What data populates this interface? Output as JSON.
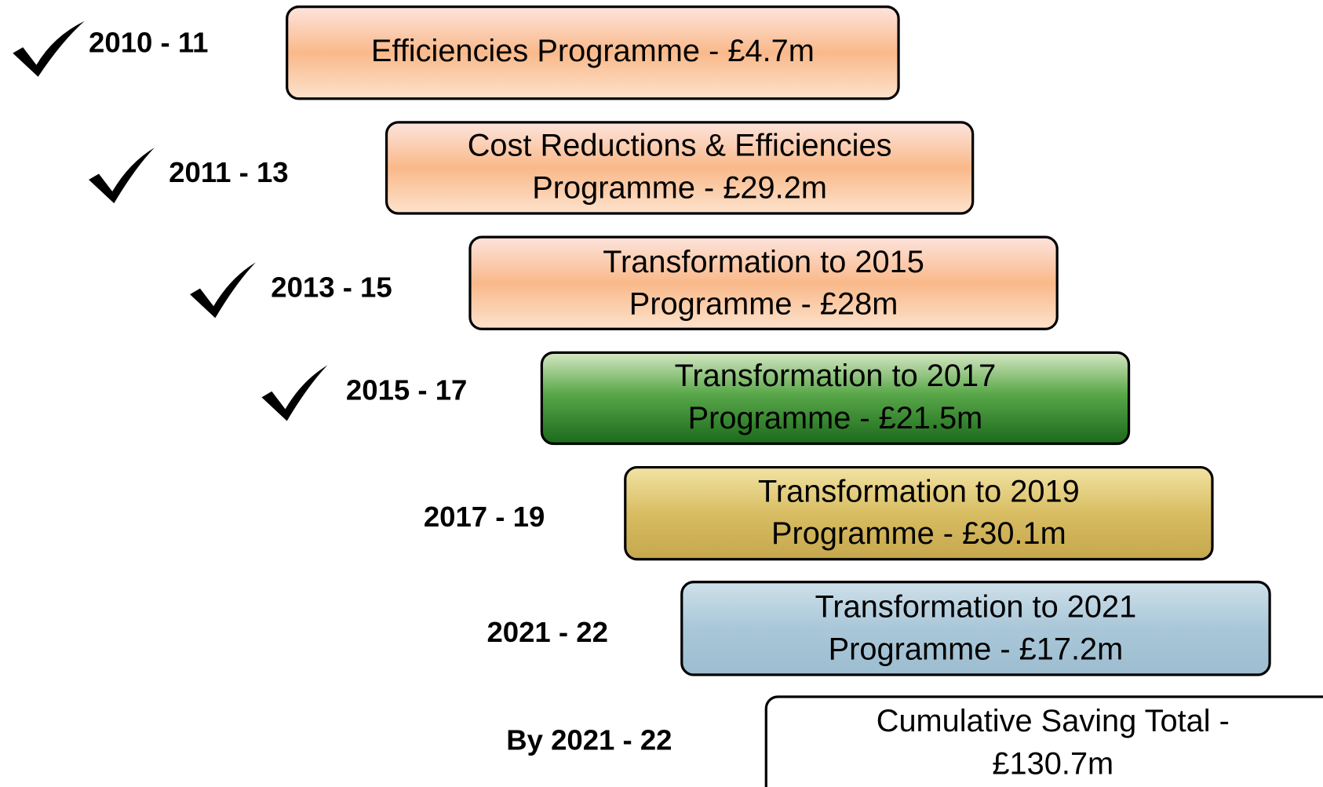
{
  "rows": [
    {
      "period": "2010 - 11",
      "lines": [
        "Efficiencies Programme - £4.7m"
      ]
    },
    {
      "period": "2011 - 13",
      "lines": [
        "Cost Reductions & Efficiencies",
        "Programme - £29.2m"
      ]
    },
    {
      "period": "2013 - 15",
      "lines": [
        "Transformation to 2015",
        "Programme - £28m"
      ]
    },
    {
      "period": "2015 - 17",
      "lines": [
        "Transformation to 2017",
        "Programme - £21.5m"
      ]
    },
    {
      "period": "2017 - 19",
      "lines": [
        "Transformation to 2019",
        "Programme - £30.1m"
      ]
    },
    {
      "period": "2021 - 22",
      "lines": [
        "Transformation to 2021",
        "Programme - £17.2m"
      ]
    },
    {
      "period": "By 2021 - 22",
      "lines": [
        "Cumulative Saving Total -",
        "£130.7m"
      ]
    }
  ]
}
